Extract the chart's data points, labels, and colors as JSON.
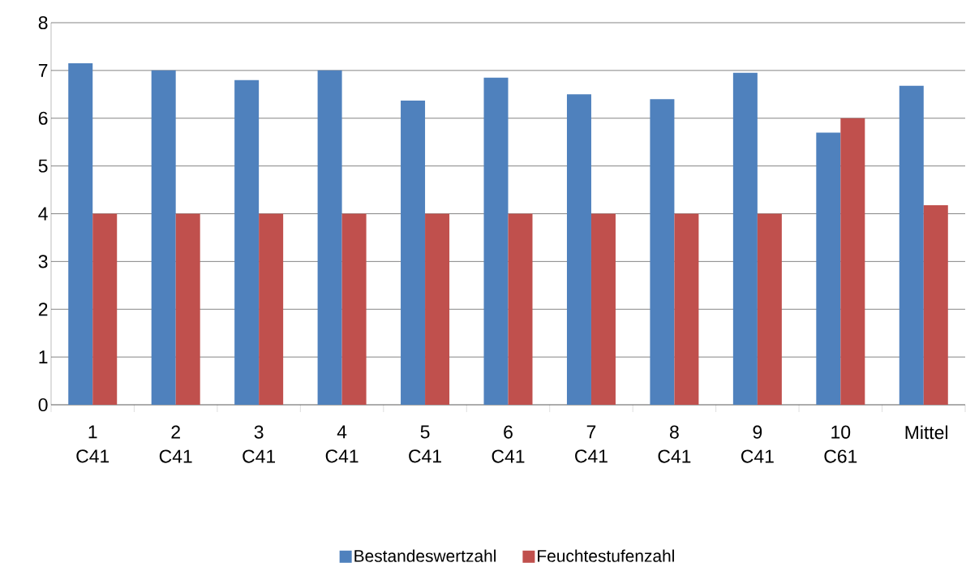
{
  "chart_data": {
    "type": "bar",
    "categories": [
      "1 C41",
      "2 C41",
      "3 C41",
      "4 C41",
      "5 C41",
      "6 C41",
      "7 C41",
      "8 C41",
      "9 C41",
      "10 C61",
      "Mittel"
    ],
    "series": [
      {
        "name": "Bestandeswertzahl",
        "color": "#4f81bd",
        "values": [
          7.15,
          7.0,
          6.8,
          7.0,
          6.37,
          6.85,
          6.5,
          6.4,
          6.95,
          5.7,
          6.68
        ]
      },
      {
        "name": "Feuchtestufenzahl",
        "color": "#c0504d",
        "values": [
          4,
          4,
          4,
          4,
          4,
          4,
          4,
          4,
          4,
          6.0,
          4.18
        ]
      }
    ],
    "ylim": [
      0,
      8
    ],
    "yticks": [
      0,
      1,
      2,
      3,
      4,
      5,
      6,
      7,
      8
    ],
    "grid": "y",
    "legend": "bottom"
  }
}
